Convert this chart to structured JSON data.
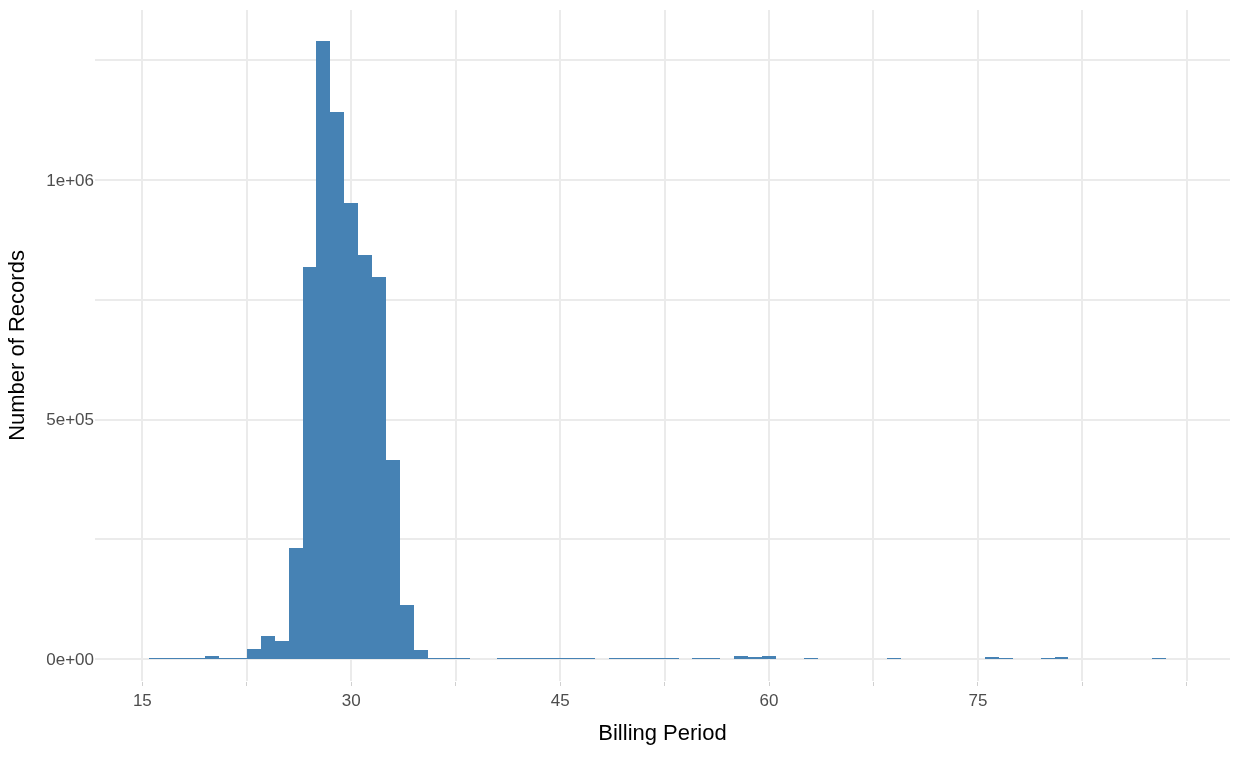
{
  "chart_data": {
    "type": "histogram",
    "xlabel": "Billing Period",
    "ylabel": "Number of Records",
    "color": "#4682b4",
    "bins": [
      15.5,
      16.5,
      17.5,
      18.5,
      19.5,
      20.5,
      21.5,
      22.5,
      23.5,
      24.5,
      25.5,
      26.5,
      27.5,
      28.5,
      29.5,
      30.5,
      31.5,
      32.5,
      33.5,
      34.5,
      35.5,
      36.5,
      37.5,
      38.5,
      39.5,
      40.5,
      41.5,
      42.5,
      43.5,
      44.5,
      45.5,
      46.5,
      47.5,
      48.5,
      49.5,
      50.5,
      51.5,
      52.5,
      53.5,
      54.5,
      55.5,
      56.5,
      57.5,
      58.5,
      59.5,
      60.5,
      61.5,
      62.5,
      63.5,
      64.5,
      65.5,
      66.5,
      67.5,
      68.5,
      69.5,
      70.5,
      71.5,
      72.5,
      73.5,
      74.5,
      75.5,
      76.5,
      77.5,
      78.5,
      79.5,
      80.5,
      81.5,
      82.5,
      83.5,
      84.5,
      85.5,
      86.5,
      87.5,
      88.5
    ],
    "values": [
      2000,
      1000,
      2000,
      2000,
      7000,
      2000,
      2000,
      20000,
      48000,
      37000,
      231000,
      819000,
      1290000,
      1141000,
      952000,
      843000,
      797000,
      416000,
      113000,
      19000,
      2000,
      2000,
      1000,
      0,
      0,
      1000,
      1000,
      1000,
      1000,
      1000,
      1000,
      1000,
      0,
      1000,
      1000,
      1000,
      1000,
      1000,
      0,
      2000,
      1000,
      0,
      6000,
      4000,
      6000,
      0,
      0,
      2000,
      0,
      0,
      0,
      0,
      0,
      2000,
      0,
      0,
      0,
      0,
      0,
      0,
      3000,
      2000,
      0,
      0,
      2000,
      5000,
      0,
      0,
      0,
      0,
      0,
      0,
      2000
    ],
    "xlim": [
      11.6,
      93.1
    ],
    "xticks": [
      15,
      {
        "value": 22.5,
        "label": null
      },
      30,
      {
        "value": 37.5,
        "label": null
      },
      45,
      {
        "value": 52.5,
        "label": null
      },
      60,
      {
        "value": 67.5,
        "label": null
      },
      75,
      {
        "value": 82.5,
        "label": null
      },
      {
        "value": 90,
        "label": null
      }
    ],
    "ylim": [
      -46000,
      1355000
    ],
    "yticks": [
      {
        "value": 0,
        "label": "0e+00"
      },
      {
        "value": 250000,
        "label": null
      },
      {
        "value": 500000,
        "label": "5e+05"
      },
      {
        "value": 750000,
        "label": null
      },
      {
        "value": 1000000,
        "label": "1e+06"
      },
      {
        "value": 1250000,
        "label": null
      }
    ],
    "grid": true
  }
}
